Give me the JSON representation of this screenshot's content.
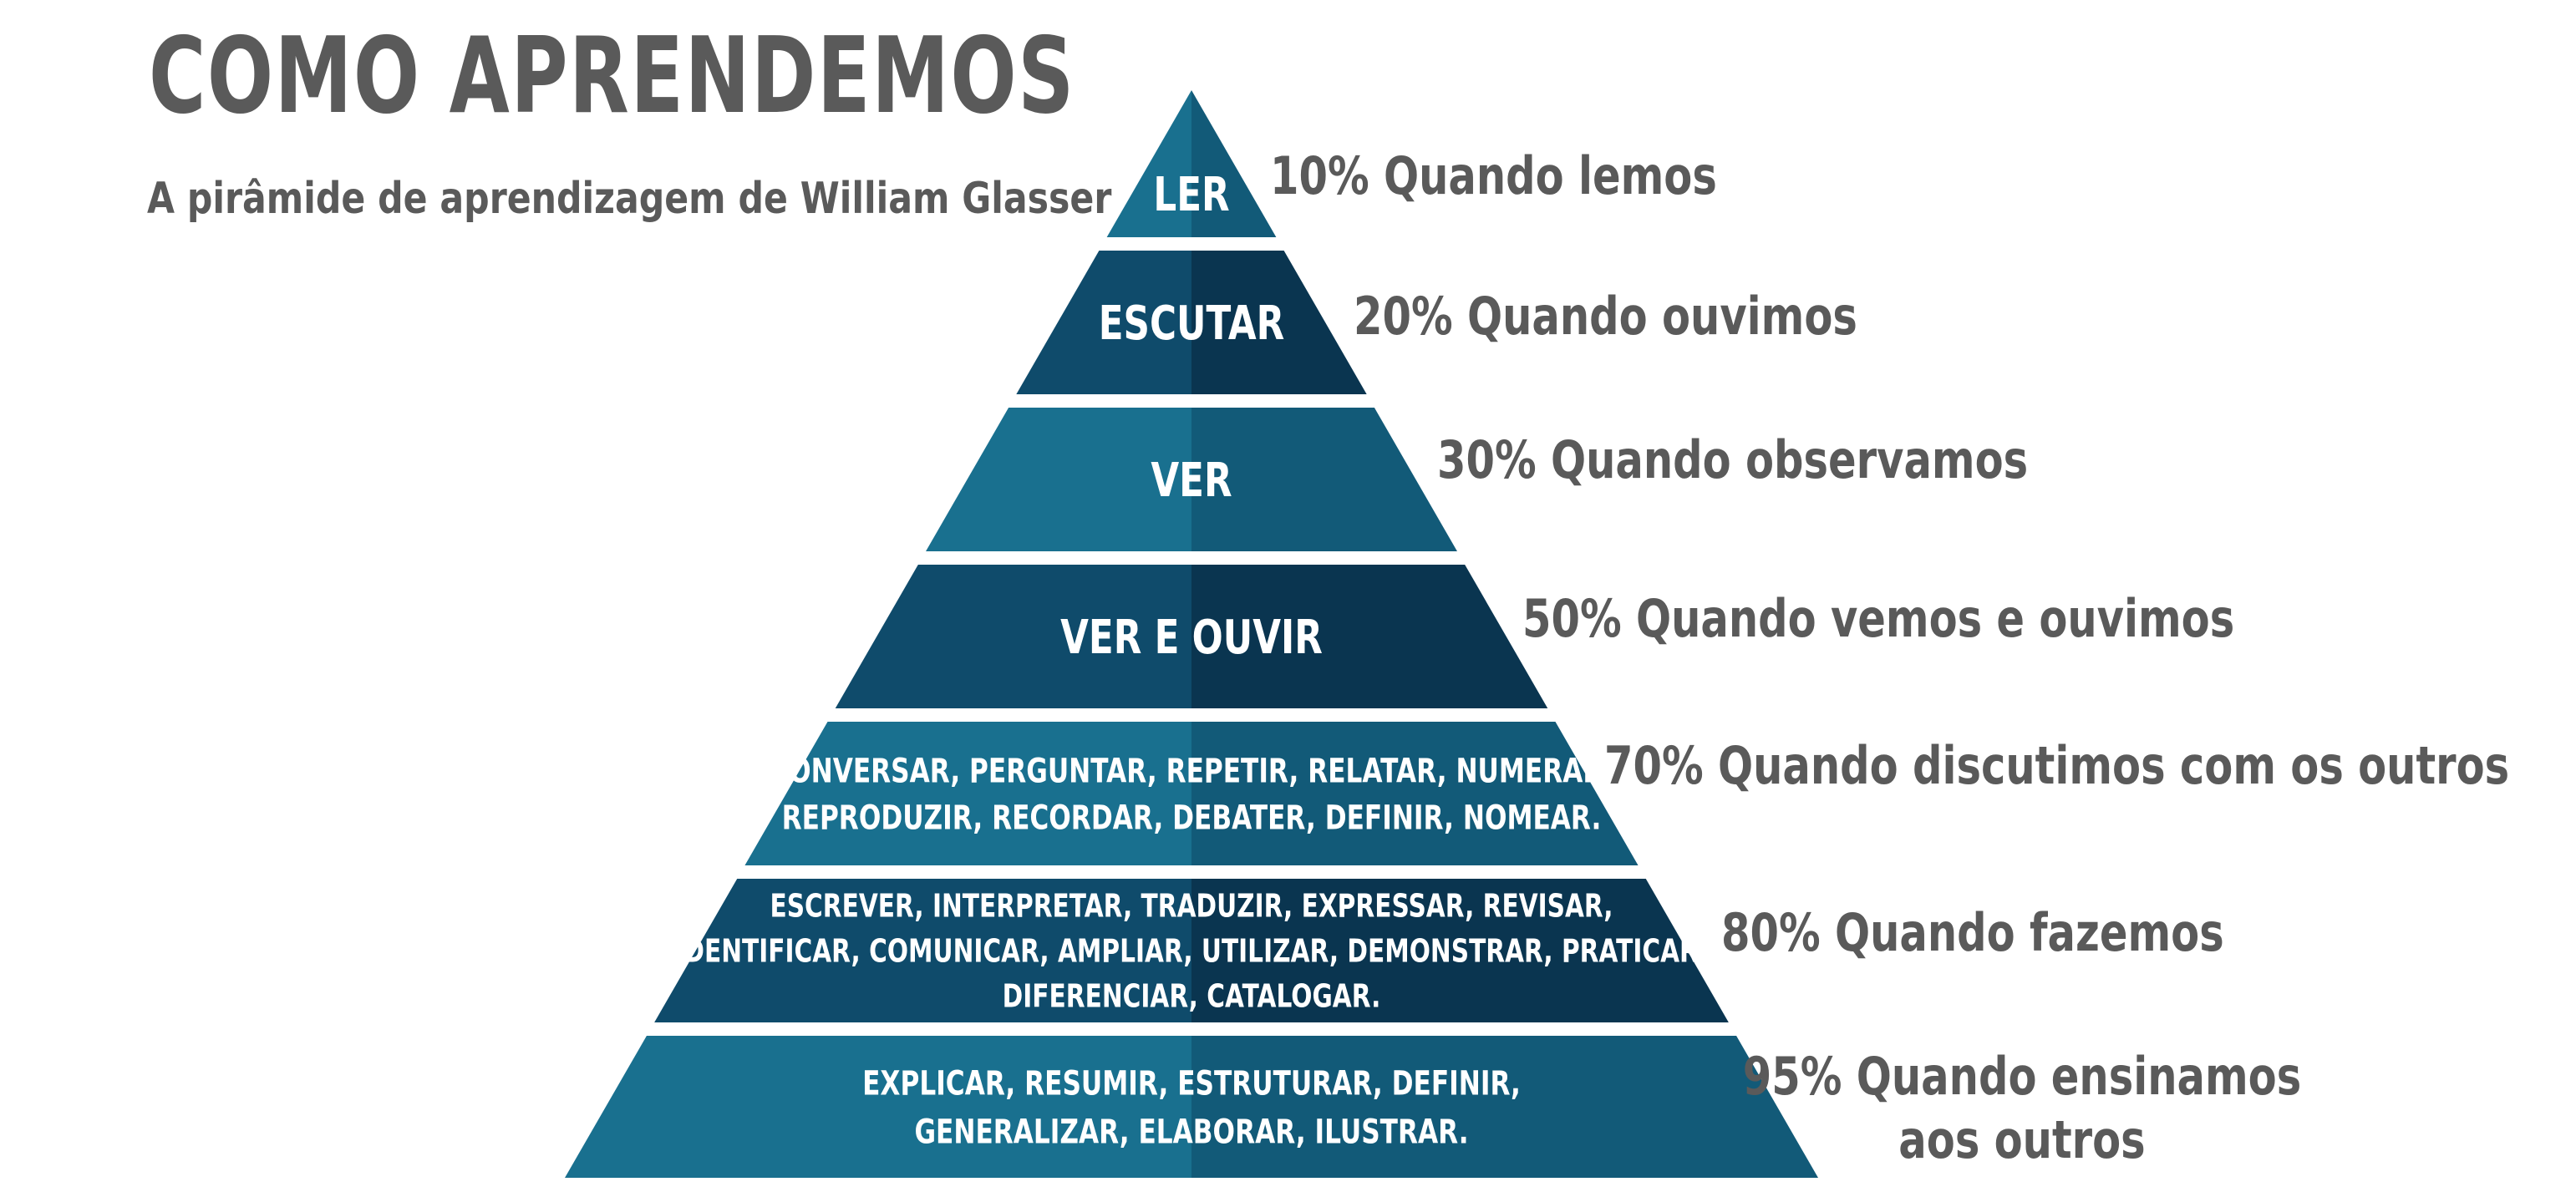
{
  "title": "COMO APRENDEMOS",
  "subtitle": "A pirâmide de aprendizagem de William Glasser",
  "colors": {
    "text_gray": "#5a5a5a",
    "tier_light_left": "#19708f",
    "tier_light_right": "#125a78",
    "tier_dark_left": "#0f4b6b",
    "tier_dark_right": "#0a3550",
    "label_white": "#ffffff"
  },
  "levels": [
    {
      "label_lines": [
        "LER"
      ],
      "description_lines": [
        "10% Quando lemos"
      ],
      "shade": "light"
    },
    {
      "label_lines": [
        "ESCUTAR"
      ],
      "description_lines": [
        "20% Quando ouvimos"
      ],
      "shade": "dark"
    },
    {
      "label_lines": [
        "VER"
      ],
      "description_lines": [
        "30% Quando observamos"
      ],
      "shade": "light"
    },
    {
      "label_lines": [
        "VER E OUVIR"
      ],
      "description_lines": [
        "50% Quando vemos e ouvimos"
      ],
      "shade": "dark"
    },
    {
      "label_lines": [
        "CONVERSAR, PERGUNTAR, REPETIR, RELATAR, NUMERAR,",
        "REPRODUZIR, RECORDAR, DEBATER, DEFINIR, NOMEAR."
      ],
      "description_lines": [
        "70% Quando discutimos com os outros"
      ],
      "shade": "light"
    },
    {
      "label_lines": [
        "ESCREVER, INTERPRETAR, TRADUZIR, EXPRESSAR, REVISAR,",
        "IDENTIFICAR, COMUNICAR, AMPLIAR, UTILIZAR, DEMONSTRAR, PRATICAR,",
        "DIFERENCIAR, CATALOGAR."
      ],
      "description_lines": [
        "80% Quando fazemos"
      ],
      "shade": "dark"
    },
    {
      "label_lines": [
        "EXPLICAR, RESUMIR, ESTRUTURAR, DEFINIR,",
        "GENERALIZAR, ELABORAR, ILUSTRAR."
      ],
      "description_lines": [
        "95% Quando ensinamos",
        "aos outros"
      ],
      "shade": "light"
    }
  ]
}
